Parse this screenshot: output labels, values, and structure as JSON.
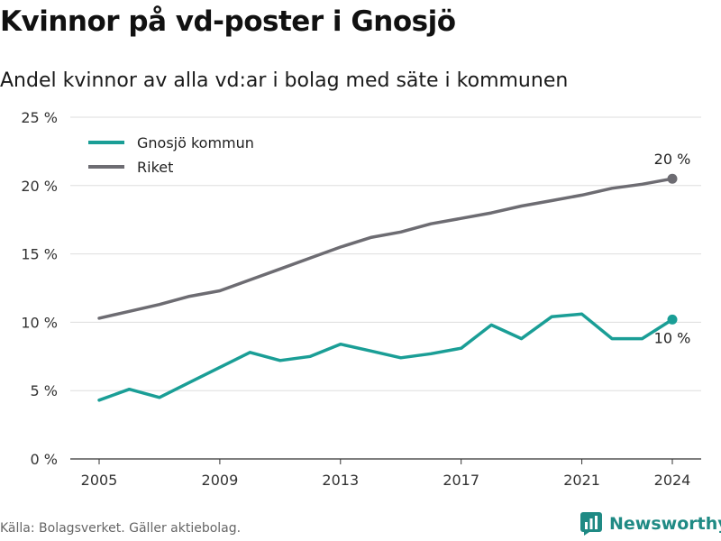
{
  "title": "Kvinnor på vd-poster i Gnosjö",
  "subtitle": "Andel kvinnor av alla vd:ar i bolag med säte i kommunen",
  "source": "Källa: Bolagsverket. Gäller aktiebolag.",
  "brand": {
    "name": "Newsworthy",
    "icon": "newsworthy-logo-icon",
    "color": "#1f8a84"
  },
  "chart_data": {
    "type": "line",
    "x": [
      2005,
      2006,
      2007,
      2008,
      2009,
      2010,
      2011,
      2012,
      2013,
      2014,
      2015,
      2016,
      2017,
      2018,
      2019,
      2020,
      2021,
      2022,
      2023,
      2024
    ],
    "x_ticks": [
      "2005",
      "2009",
      "2013",
      "2017",
      "2021",
      "2024"
    ],
    "y_ticks": [
      "0 %",
      "5 %",
      "10 %",
      "15 %",
      "20 %",
      "25 %"
    ],
    "ylim": [
      0,
      25
    ],
    "grid": true,
    "legend_position": "top-left",
    "series": [
      {
        "name": "Gnosjö kommun",
        "color": "#1a9e96",
        "values": [
          4.3,
          5.1,
          4.5,
          5.6,
          6.7,
          7.8,
          7.2,
          7.5,
          8.4,
          7.9,
          7.4,
          7.7,
          8.1,
          9.8,
          8.8,
          10.4,
          10.6,
          8.8,
          8.8,
          10.2
        ],
        "end_label": "10 %"
      },
      {
        "name": "Riket",
        "color": "#6d6c72",
        "values": [
          10.3,
          10.8,
          11.3,
          11.9,
          12.3,
          13.1,
          13.9,
          14.7,
          15.5,
          16.2,
          16.6,
          17.2,
          17.6,
          18.0,
          18.5,
          18.9,
          19.3,
          19.8,
          20.1,
          20.5
        ],
        "end_label": "20 %"
      }
    ]
  }
}
